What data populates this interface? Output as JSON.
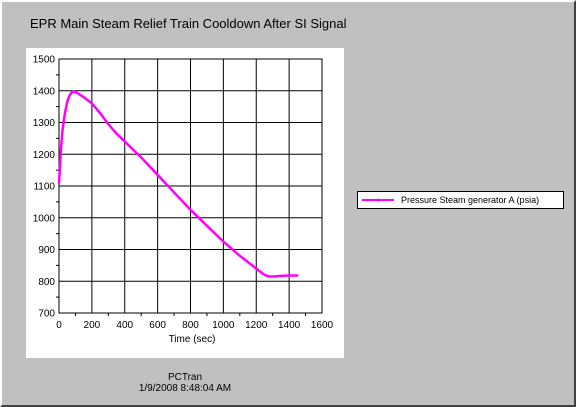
{
  "window": {
    "title": "EPR Main Steam Relief Train Cooldown After SI Signal",
    "footer_app": "PCTran",
    "footer_datetime": "1/9/2008 8:48:04 AM"
  },
  "colors": {
    "series": "#ff00ff",
    "frame": "#c0c0c0",
    "plot_background": "#ffffff",
    "grid": "#000000"
  },
  "chart_data": {
    "type": "line",
    "title": "EPR Main Steam Relief Train Cooldown After SI Signal",
    "xlabel": "Time (sec)",
    "ylabel": "",
    "xlim": [
      0,
      1600
    ],
    "ylim": [
      700,
      1500
    ],
    "x_ticks": [
      0,
      200,
      400,
      600,
      800,
      1000,
      1200,
      1400,
      1600
    ],
    "y_ticks": [
      700,
      800,
      900,
      1000,
      1100,
      1200,
      1300,
      1400,
      1500
    ],
    "grid": true,
    "legend_position": "right",
    "series": [
      {
        "name": "Pressure Steam generator A (psia)",
        "color": "#ff00ff",
        "x": [
          0,
          5,
          10,
          20,
          30,
          40,
          50,
          60,
          70,
          80,
          90,
          100,
          120,
          150,
          180,
          200,
          220,
          250,
          300,
          350,
          400,
          500,
          600,
          700,
          800,
          900,
          1000,
          1100,
          1200,
          1250,
          1280,
          1300,
          1350,
          1400,
          1450
        ],
        "y": [
          1110,
          1150,
          1200,
          1270,
          1310,
          1340,
          1365,
          1380,
          1390,
          1396,
          1398,
          1396,
          1390,
          1380,
          1368,
          1360,
          1348,
          1330,
          1295,
          1265,
          1240,
          1190,
          1135,
          1080,
          1025,
          975,
          925,
          880,
          840,
          820,
          815,
          815,
          817,
          818,
          818
        ]
      }
    ]
  }
}
